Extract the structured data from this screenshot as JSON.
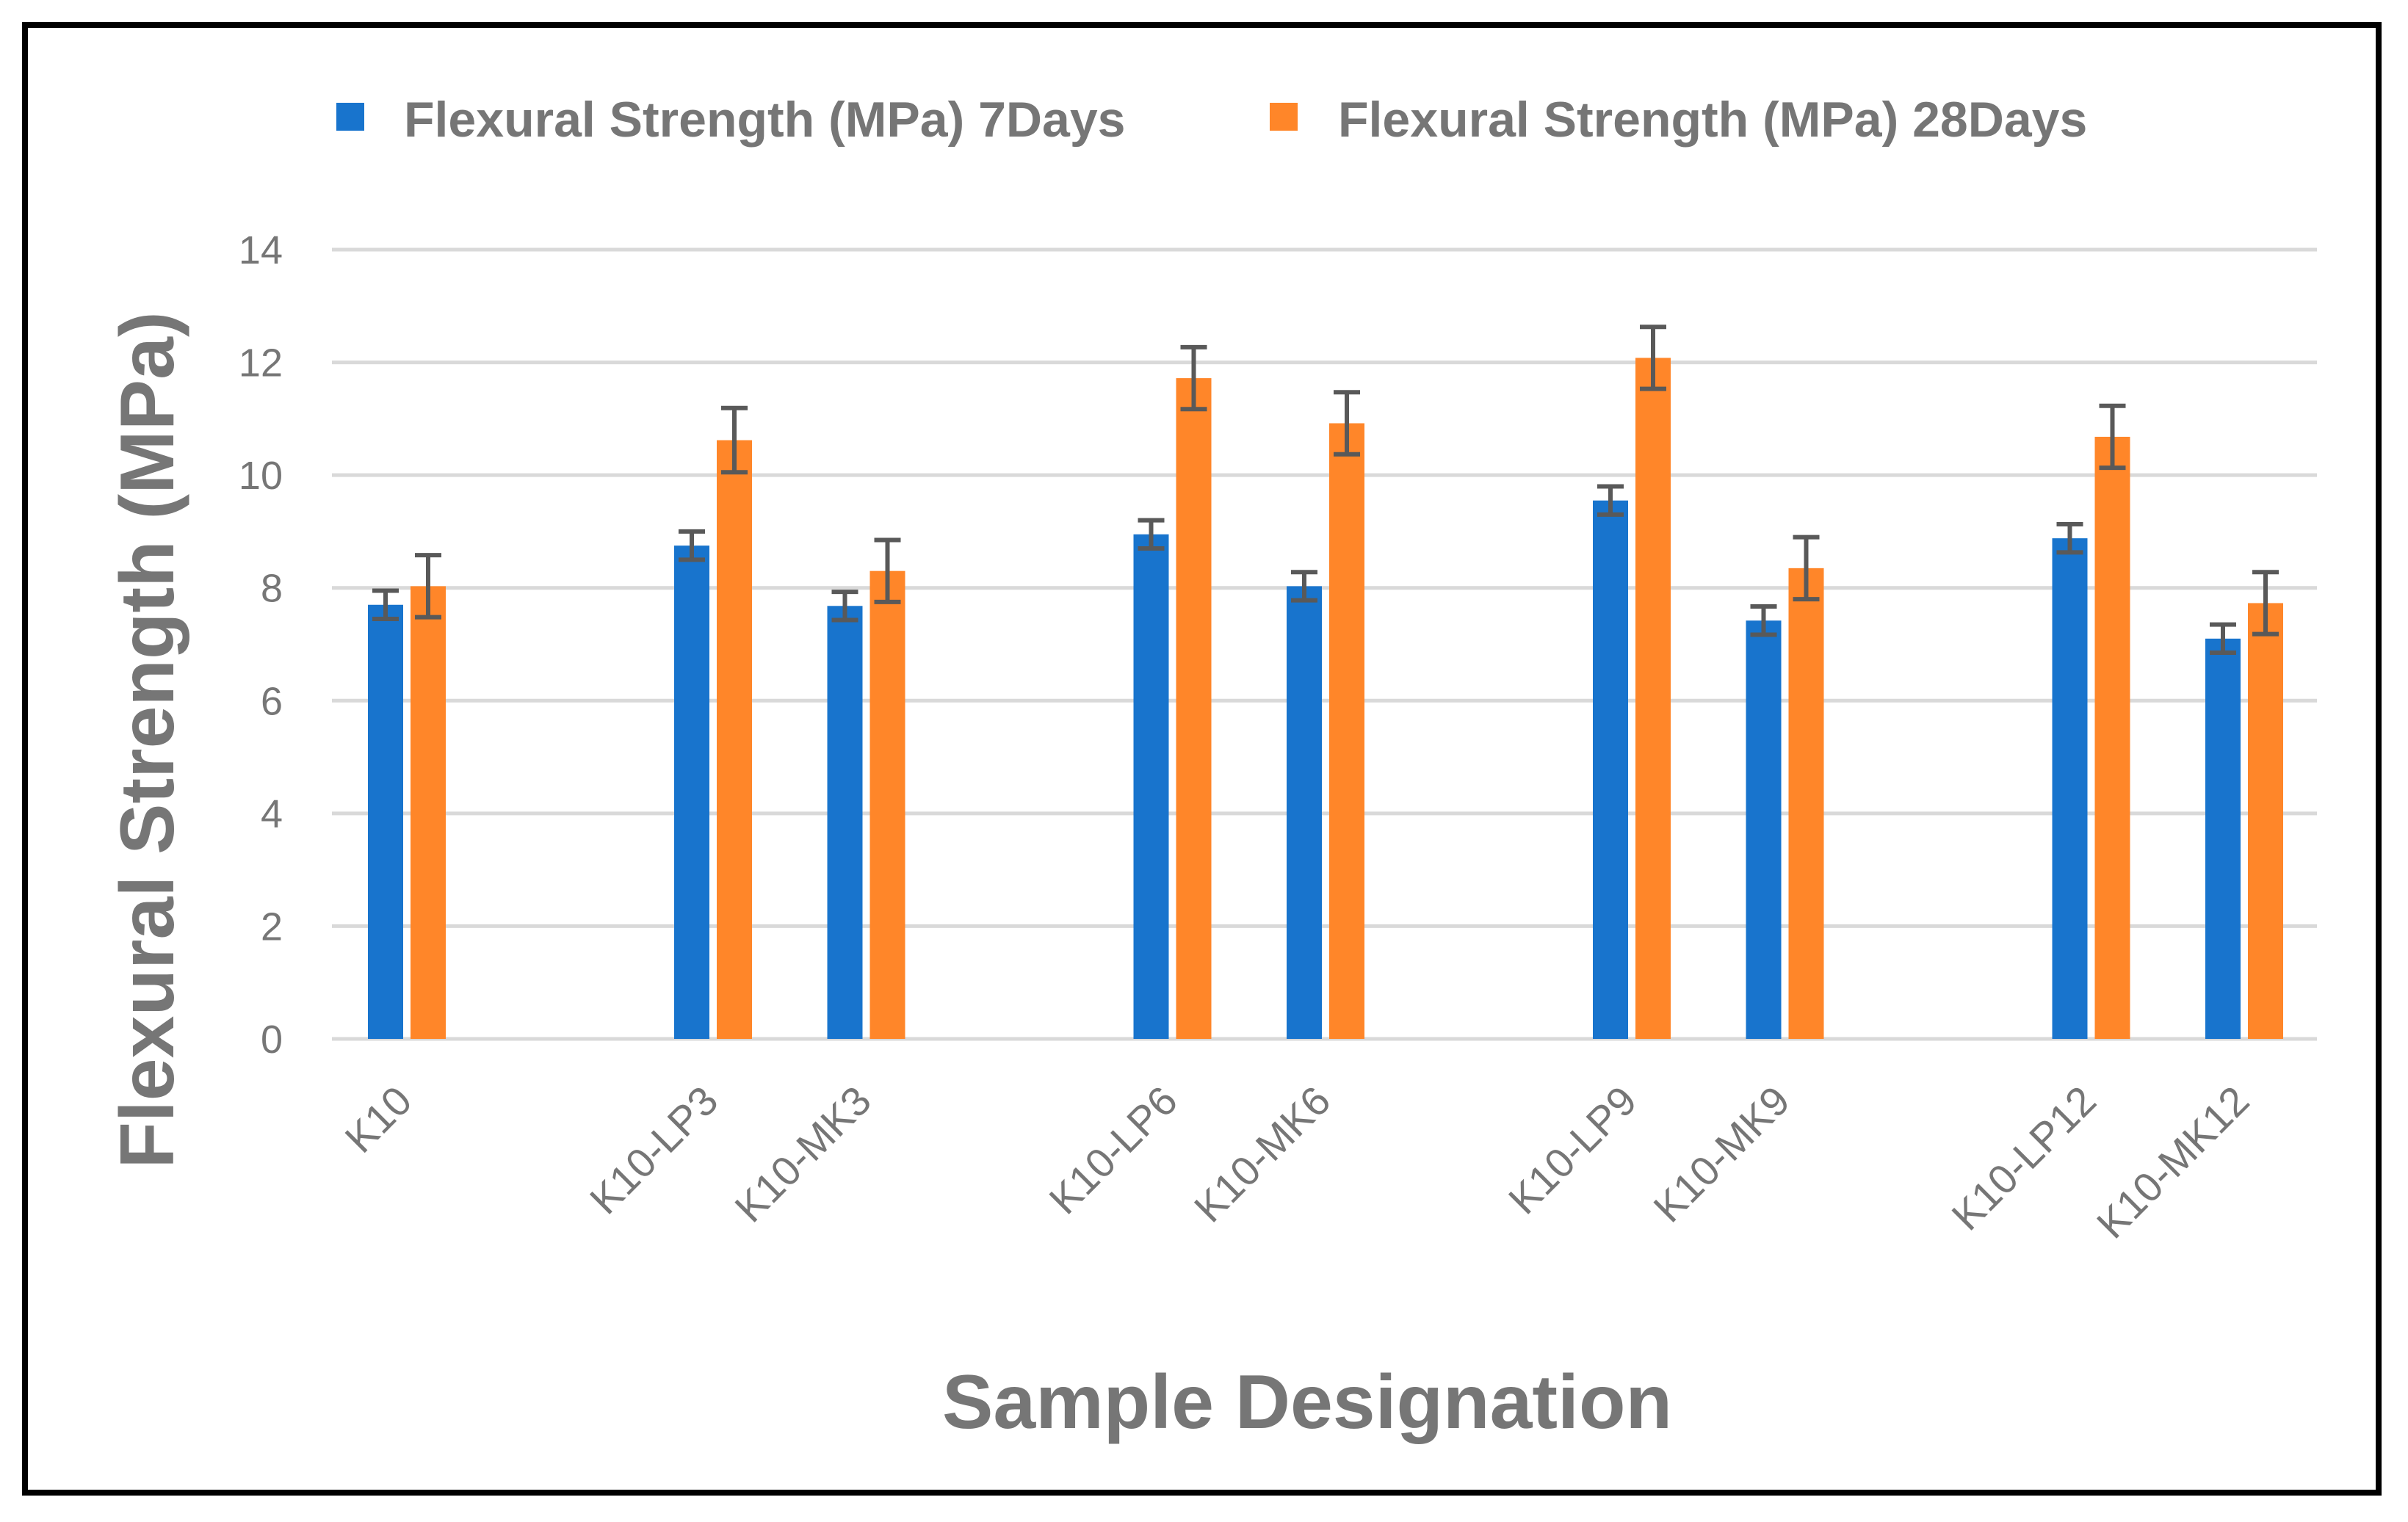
{
  "chart_data": {
    "type": "bar",
    "title": "",
    "xlabel": "Sample Designation",
    "ylabel": "Flexural Strength (MPa)",
    "ylim": [
      0,
      14
    ],
    "yticks": [
      "0",
      "2",
      "4",
      "6",
      "8",
      "10",
      "12",
      "14"
    ],
    "grid": true,
    "legend_position": "top",
    "categories": [
      "K10",
      "K10-LP3",
      "K10-MK3",
      "K10-LP6",
      "K10-MK6",
      "K10-LP9",
      "K10-MK9",
      "K10-LP12",
      "K10-MK12"
    ],
    "category_slots": [
      0,
      2,
      3,
      5,
      6,
      8,
      9,
      11,
      12
    ],
    "slot_count": 13,
    "series": [
      {
        "name": "Flexural Strength (MPa) 7Days",
        "color": "#1874CD",
        "values": [
          7.7,
          8.75,
          7.68,
          8.95,
          8.03,
          9.55,
          7.42,
          8.88,
          7.1
        ],
        "errors": [
          0.25,
          0.25,
          0.25,
          0.25,
          0.25,
          0.25,
          0.25,
          0.25,
          0.25
        ]
      },
      {
        "name": "Flexural Strength (MPa) 28Days",
        "color": "#FF8629",
        "values": [
          8.03,
          10.62,
          8.3,
          11.72,
          10.92,
          12.08,
          8.35,
          10.68,
          7.73
        ],
        "errors": [
          0.55,
          0.57,
          0.55,
          0.55,
          0.55,
          0.55,
          0.55,
          0.55,
          0.55
        ]
      }
    ],
    "error_bar_color": "#595959",
    "grid_color": "#D9D9D9",
    "text_color": "#767676"
  }
}
